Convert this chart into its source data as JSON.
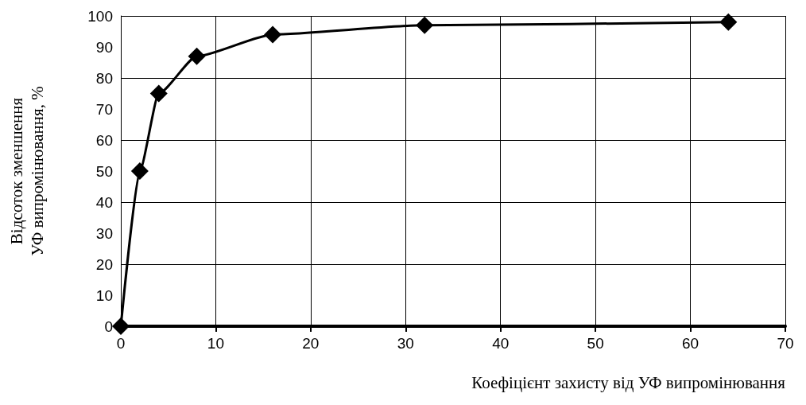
{
  "chart_data": {
    "type": "line",
    "xlabel": "Коефіцієнт захисту від УФ випромінювання",
    "ylabel": "Відсоток зменшення\nУФ випромінювання, %",
    "x": [
      0,
      2,
      4,
      8,
      16,
      32,
      64
    ],
    "series": [
      {
        "color": "#000000",
        "values": [
          0,
          50,
          75,
          87,
          94,
          97,
          98
        ]
      }
    ],
    "xlim": [
      0,
      70
    ],
    "xticks": [
      0,
      10,
      20,
      30,
      40,
      50,
      60,
      70
    ],
    "ylim": [
      0,
      100
    ],
    "yticks": [
      0,
      10,
      20,
      30,
      40,
      50,
      60,
      70,
      80,
      90,
      100
    ],
    "grid": true,
    "marker": "diamond",
    "line_style": "solid"
  }
}
